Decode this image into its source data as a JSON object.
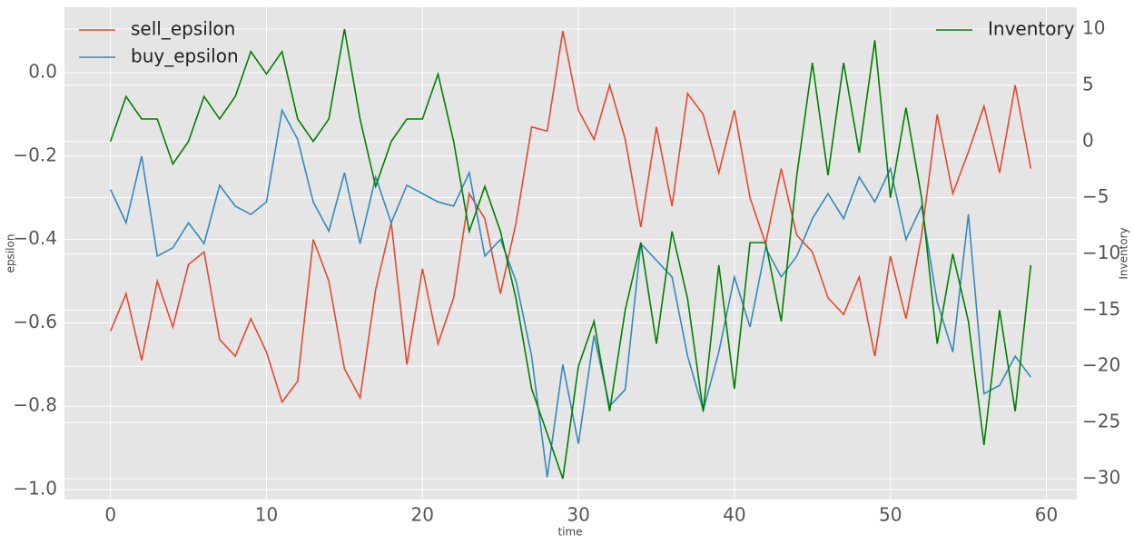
{
  "chart_data": {
    "type": "line",
    "x_label": "time",
    "y_label": "epsilon",
    "y2_label": "Inventory",
    "x": [
      0,
      1,
      2,
      3,
      4,
      5,
      6,
      7,
      8,
      9,
      10,
      11,
      12,
      13,
      14,
      15,
      16,
      17,
      18,
      19,
      20,
      21,
      22,
      23,
      24,
      25,
      26,
      27,
      28,
      29,
      30,
      31,
      32,
      33,
      34,
      35,
      36,
      37,
      38,
      39,
      40,
      41,
      42,
      43,
      44,
      45,
      46,
      47,
      48,
      49,
      50,
      51,
      52,
      53,
      54,
      55,
      56,
      57,
      58,
      59
    ],
    "series": [
      {
        "name": "sell_epsilon",
        "color": "#e24a33",
        "axis": "y",
        "values": [
          -0.62,
          -0.53,
          -0.69,
          -0.5,
          -0.61,
          -0.46,
          -0.43,
          -0.64,
          -0.68,
          -0.59,
          -0.67,
          -0.79,
          -0.74,
          -0.4,
          -0.5,
          -0.71,
          -0.78,
          -0.52,
          -0.36,
          -0.7,
          -0.47,
          -0.65,
          -0.54,
          -0.29,
          -0.35,
          -0.53,
          -0.36,
          -0.13,
          -0.14,
          0.1,
          -0.09,
          -0.16,
          -0.03,
          -0.16,
          -0.37,
          -0.13,
          -0.32,
          -0.05,
          -0.1,
          -0.24,
          -0.09,
          -0.3,
          -0.41,
          -0.23,
          -0.39,
          -0.43,
          -0.54,
          -0.58,
          -0.49,
          -0.68,
          -0.44,
          -0.59,
          -0.39,
          -0.1,
          -0.29,
          -0.19,
          -0.08,
          -0.24,
          -0.03,
          -0.23
        ]
      },
      {
        "name": "buy_epsilon",
        "color": "#348abd",
        "axis": "y",
        "values": [
          -0.28,
          -0.36,
          -0.2,
          -0.44,
          -0.42,
          -0.36,
          -0.41,
          -0.27,
          -0.32,
          -0.34,
          -0.31,
          -0.09,
          -0.16,
          -0.31,
          -0.38,
          -0.24,
          -0.41,
          -0.25,
          -0.36,
          -0.27,
          -0.29,
          -0.31,
          -0.32,
          -0.24,
          -0.44,
          -0.4,
          -0.5,
          -0.68,
          -0.97,
          -0.7,
          -0.89,
          -0.63,
          -0.8,
          -0.76,
          -0.41,
          -0.45,
          -0.49,
          -0.68,
          -0.81,
          -0.67,
          -0.49,
          -0.61,
          -0.42,
          -0.49,
          -0.44,
          -0.35,
          -0.29,
          -0.35,
          -0.25,
          -0.31,
          -0.23,
          -0.4,
          -0.32,
          -0.55,
          -0.67,
          -0.34,
          -0.77,
          -0.75,
          -0.68,
          -0.73
        ]
      },
      {
        "name": "Inventory",
        "color": "#008000",
        "axis": "y2",
        "values": [
          0,
          4,
          2,
          2,
          -2,
          0,
          4,
          2,
          4,
          8,
          6,
          8,
          2,
          0,
          2,
          10,
          2,
          -4,
          0,
          2,
          2,
          6,
          0,
          -8,
          -4,
          -8,
          -14,
          -22,
          -26,
          -30,
          -20,
          -16,
          -24,
          -15,
          -9,
          -18,
          -8,
          -14,
          -24,
          -11,
          -22,
          -9,
          -9,
          -16,
          -3,
          7,
          -3,
          7,
          -1,
          9,
          -5,
          3,
          -5,
          -18,
          -10,
          -16,
          -27,
          -15,
          -24,
          -11
        ]
      }
    ],
    "xlim": [
      -2.95,
      61.95
    ],
    "xticks": [
      0,
      10,
      20,
      30,
      40,
      50,
      60
    ],
    "ylim": [
      -1.024,
      0.157
    ],
    "yticks": [
      {
        "value": -1,
        "label": "−1.0"
      },
      {
        "value": -0.8,
        "label": "−0.8"
      },
      {
        "value": -0.6,
        "label": "−0.6"
      },
      {
        "value": -0.4,
        "label": "−0.4"
      },
      {
        "value": -0.2,
        "label": "−0.2"
      },
      {
        "value": 0,
        "label": "0.0"
      }
    ],
    "y2lim": [
      -31.86,
      11.94
    ],
    "y2ticks": [
      {
        "value": -30,
        "label": "−30"
      },
      {
        "value": -25,
        "label": "−25"
      },
      {
        "value": -20,
        "label": "−20"
      },
      {
        "value": -15,
        "label": "−15"
      },
      {
        "value": -10,
        "label": "−10"
      },
      {
        "value": -5,
        "label": "−5"
      },
      0,
      5,
      10
    ],
    "grid": true,
    "legend": "upper left",
    "legend_y2": "upper right"
  }
}
